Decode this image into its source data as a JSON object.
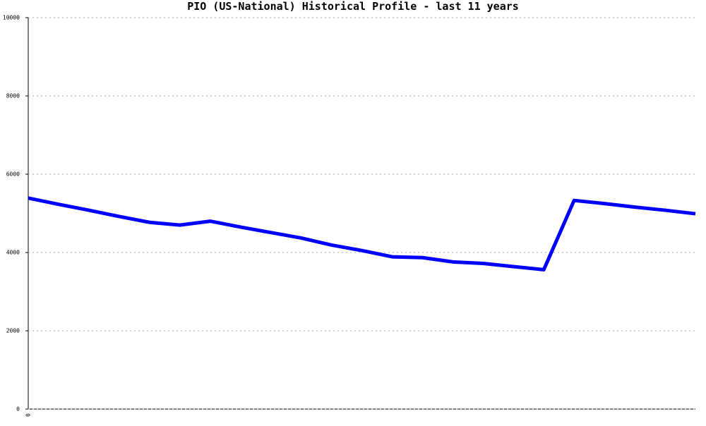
{
  "chart_data": {
    "type": "line",
    "title": "PIO (US-National) Historical Profile - last 11 years",
    "categories": [
      "0",
      null,
      null,
      null,
      null,
      null,
      null,
      null,
      null,
      null,
      null,
      null,
      null,
      null,
      null,
      null,
      null,
      null,
      null,
      null,
      null,
      null,
      null
    ],
    "series": [
      {
        "color": "#0000ff",
        "values": [
          5390,
          5230,
          5080,
          4920,
          4770,
          4700,
          4800,
          4650,
          4510,
          4370,
          4190,
          4050,
          3890,
          3870,
          3760,
          3720,
          3640,
          3560,
          5330,
          5250,
          5160,
          5080,
          4990
        ]
      }
    ],
    "ylim": [
      0,
      10000
    ],
    "yticks": [
      0,
      2000,
      4000,
      6000,
      8000,
      10000
    ],
    "grid": true
  }
}
